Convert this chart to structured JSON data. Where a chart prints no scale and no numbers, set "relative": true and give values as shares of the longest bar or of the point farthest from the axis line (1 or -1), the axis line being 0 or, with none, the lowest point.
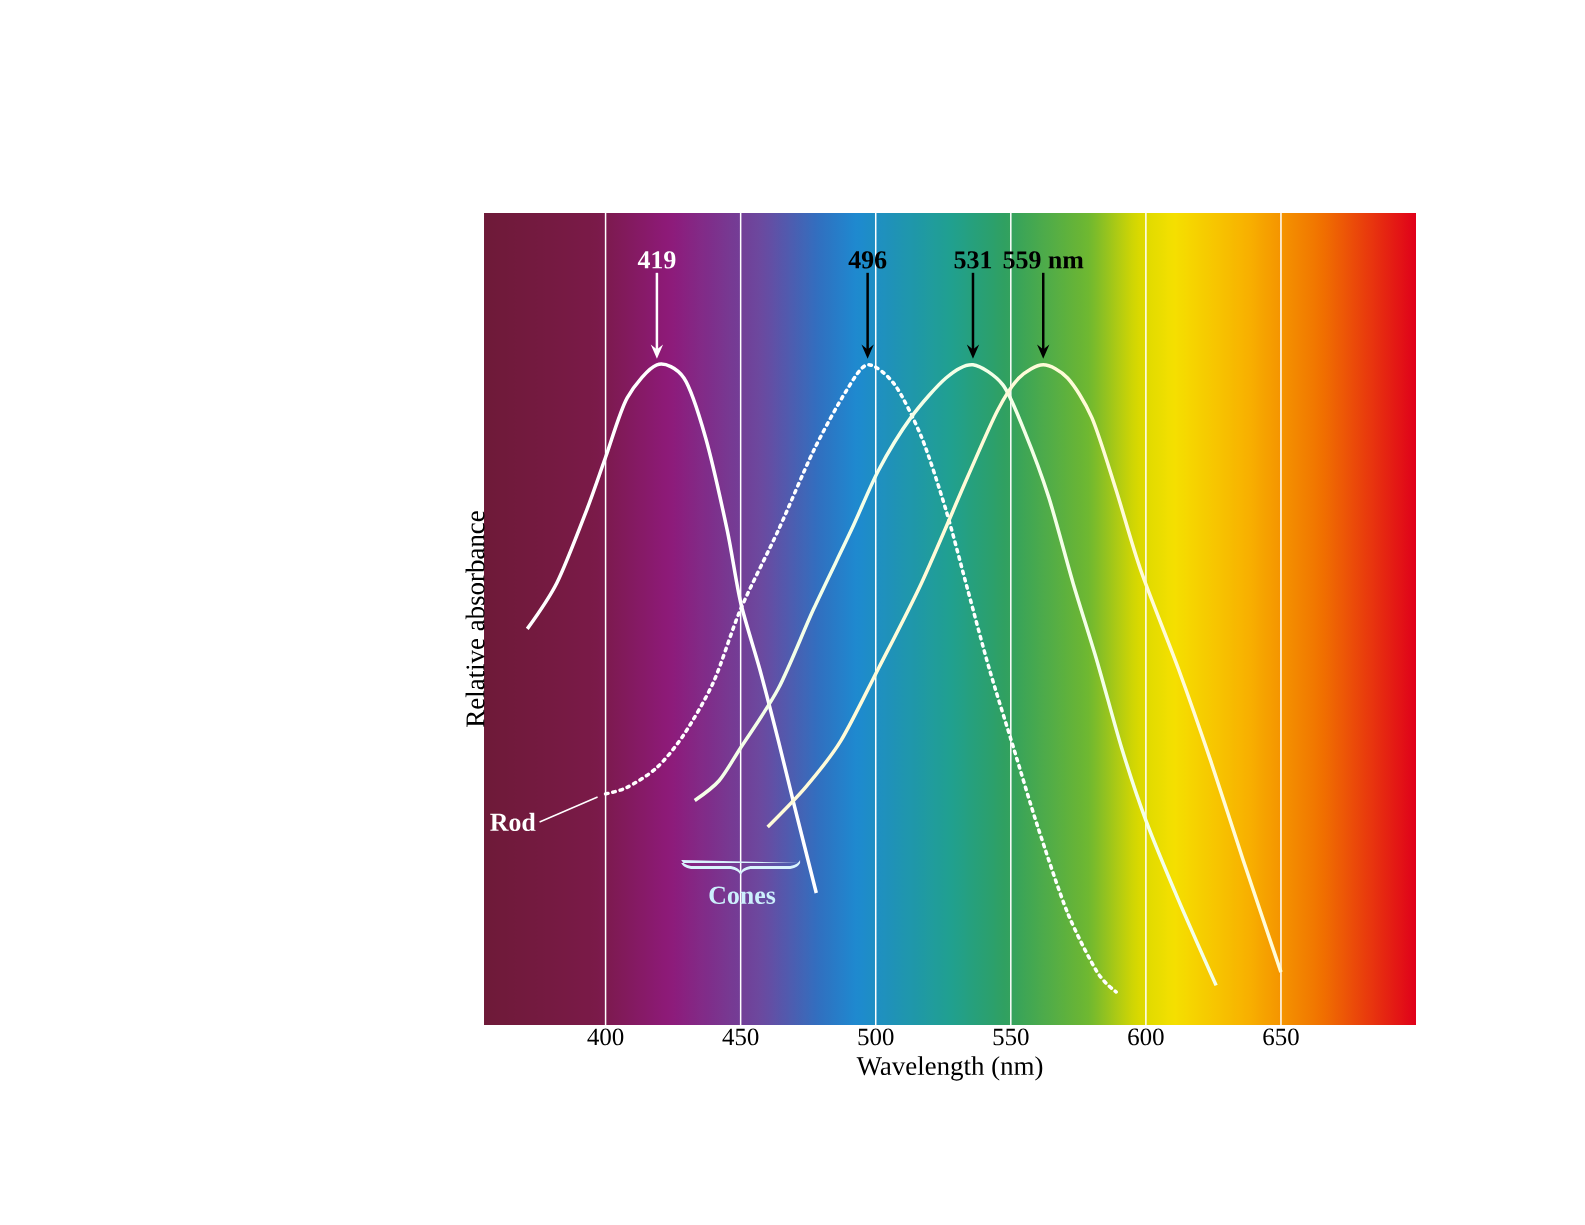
{
  "chart_data": {
    "type": "line",
    "xlabel": "Wavelength (nm)",
    "ylabel": "Relative absorbance",
    "relative": true,
    "xlim": [
      355,
      700
    ],
    "xticks": [
      400,
      450,
      500,
      550,
      600,
      650
    ],
    "grid": "x",
    "series": [
      {
        "color": "#ffffff",
        "x": [
          371,
          382,
          393,
          400,
          408,
          419,
          429,
          437,
          445,
          450,
          457,
          464,
          470,
          478
        ],
        "values": [
          0.6,
          0.67,
          0.78,
          0.86,
          0.95,
          1.0,
          0.98,
          0.89,
          0.75,
          0.64,
          0.54,
          0.43,
          0.33,
          0.2
        ]
      },
      {
        "name": "Rod",
        "color": "#ffffff",
        "line_style": "dotted",
        "x": [
          400,
          408,
          419,
          429,
          440,
          450,
          464,
          477,
          489,
          497,
          507,
          517,
          526,
          534,
          542,
          551,
          560,
          571,
          582,
          589
        ],
        "values": [
          0.35,
          0.36,
          0.39,
          0.44,
          0.52,
          0.63,
          0.75,
          0.87,
          0.96,
          1.0,
          0.97,
          0.89,
          0.78,
          0.66,
          0.54,
          0.42,
          0.3,
          0.17,
          0.08,
          0.05
        ]
      },
      {
        "color": "#f4ffe8",
        "x": [
          433,
          442,
          450,
          464,
          477,
          491,
          501,
          513,
          526,
          536,
          547,
          555,
          564,
          573,
          582,
          591,
          600,
          612,
          626
        ],
        "values": [
          0.34,
          0.37,
          0.42,
          0.51,
          0.63,
          0.75,
          0.84,
          0.92,
          0.98,
          1.0,
          0.97,
          0.9,
          0.8,
          0.67,
          0.55,
          0.42,
          0.31,
          0.19,
          0.06
        ]
      },
      {
        "color": "#fffbd8",
        "x": [
          460,
          474,
          487,
          501,
          517,
          534,
          545,
          553,
          562,
          571,
          580,
          589,
          598,
          612,
          624,
          636,
          650
        ],
        "values": [
          0.3,
          0.36,
          0.43,
          0.54,
          0.67,
          0.83,
          0.93,
          0.98,
          1.0,
          0.98,
          0.92,
          0.81,
          0.69,
          0.54,
          0.4,
          0.25,
          0.08
        ]
      }
    ],
    "annotations": [
      "419",
      "496",
      "531",
      "559 nm",
      "Cones"
    ]
  }
}
